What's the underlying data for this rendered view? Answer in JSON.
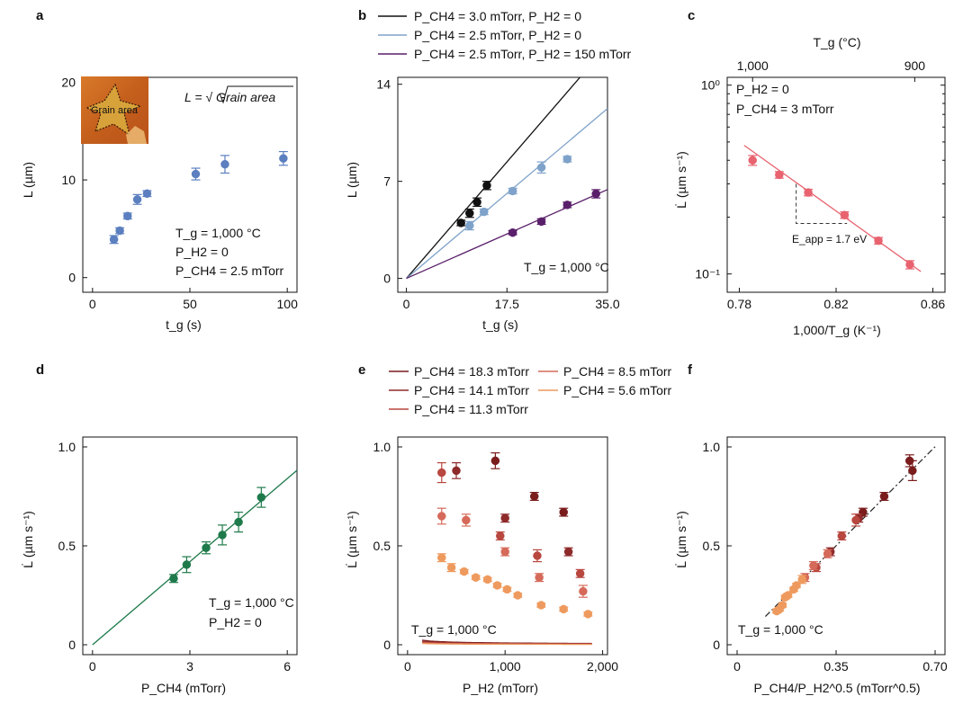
{
  "figure": {
    "colors": {
      "axis": "#111111",
      "blue": "#5b7fbf",
      "black": "#111111",
      "lightblue": "#7ea2c9",
      "purple": "#5a1f6a",
      "pink": "#e8636f",
      "green": "#1e7a4a",
      "e_series": [
        "#7a1c1c",
        "#8e2a2a",
        "#b8473f",
        "#d66a5a",
        "#ee9a5e"
      ]
    },
    "inset": {
      "label": "Grain area",
      "image": "micrograph-of-grain"
    }
  },
  "chart_data": [
    {
      "panel": "a",
      "type": "scatter",
      "xlabel": "t_g (s)",
      "ylabel": "L (µm)",
      "xlim": [
        -5,
        105
      ],
      "ylim": [
        -1.5,
        20.5
      ],
      "xticks": [
        0,
        50,
        100
      ],
      "yticks": [
        0,
        10,
        20
      ],
      "xtick_labels": [
        "0",
        "50",
        "100"
      ],
      "ytick_labels": [
        "0",
        "10",
        "20"
      ],
      "x": [
        11,
        14,
        18,
        23,
        28,
        53,
        68,
        98
      ],
      "y": [
        3.9,
        4.8,
        6.3,
        8.0,
        8.6,
        10.6,
        11.6,
        12.2
      ],
      "yerr": [
        0.4,
        0.3,
        0.3,
        0.5,
        0.3,
        0.6,
        0.9,
        0.7
      ],
      "color_key": "blue",
      "formula": "L = √ Grain area",
      "annotations": [
        "T_g = 1,000 °C",
        "P_H2 = 0",
        "P_CH4 = 2.5 mTorr"
      ]
    },
    {
      "panel": "b",
      "type": "scatter+line",
      "xlabel": "t_g (s)",
      "ylabel": "L (µm)",
      "xlim": [
        -1.5,
        35
      ],
      "ylim": [
        -1,
        14.5
      ],
      "xticks": [
        0,
        17.5,
        35
      ],
      "yticks": [
        0,
        7,
        14
      ],
      "xtick_labels": [
        "0",
        "17.5",
        "35.0"
      ],
      "ytick_labels": [
        "0",
        "7",
        "14"
      ],
      "annotation": "T_g = 1,000 °C",
      "series": [
        {
          "name": "P_CH4 = 3.0 mTorr, P_H2 = 0",
          "color_key": "black",
          "slope": 0.48,
          "x": [
            9.5,
            11.0,
            12.3,
            14.0
          ],
          "y": [
            4.0,
            4.7,
            5.5,
            6.7
          ],
          "yerr": [
            0.2,
            0.3,
            0.3,
            0.3
          ]
        },
        {
          "name": "P_CH4 = 2.5 mTorr, P_H2 = 0",
          "color_key": "lightblue",
          "slope": 0.35,
          "x": [
            11.0,
            13.5,
            18.5,
            23.5,
            28.0
          ],
          "y": [
            3.8,
            4.8,
            6.3,
            8.0,
            8.6
          ],
          "yerr": [
            0.3,
            0.2,
            0.2,
            0.4,
            0.2
          ]
        },
        {
          "name": "P_CH4 = 2.5 mTorr, P_H2 = 150 mTorr",
          "color_key": "purple",
          "slope": 0.183,
          "x": [
            18.5,
            23.5,
            28.0,
            33.0
          ],
          "y": [
            3.3,
            4.1,
            5.3,
            6.1
          ],
          "yerr": [
            0.15,
            0.2,
            0.2,
            0.3
          ]
        }
      ]
    },
    {
      "panel": "c",
      "type": "scatter+line",
      "yscale": "log",
      "xlabel": "1,000/T_g (K⁻¹)",
      "ylabel": "L̇ (µm s⁻¹)",
      "top_xlabel": "T_g (°C)",
      "xlim": [
        0.775,
        0.865
      ],
      "ylim": [
        0.08,
        1.1
      ],
      "xticks": [
        0.78,
        0.82,
        0.86
      ],
      "xtick_labels": [
        "0.78",
        "0.82",
        "0.86"
      ],
      "yticks": [
        0.1,
        1.0
      ],
      "ytick_labels": [
        "10⁻¹",
        "10⁰"
      ],
      "top_ticks": [
        {
          "label": "1,000",
          "inv_t": 0.7855
        },
        {
          "label": "900",
          "inv_t": 0.8525
        }
      ],
      "x": [
        0.7855,
        0.7965,
        0.8085,
        0.8235,
        0.8375,
        0.8505
      ],
      "y": [
        0.4,
        0.335,
        0.27,
        0.205,
        0.15,
        0.112
      ],
      "yerr_frac": [
        0.06,
        0.04,
        0.04,
        0.04,
        0.04,
        0.05
      ],
      "fit": {
        "x": [
          0.782,
          0.855
        ],
        "y": [
          0.48,
          0.103
        ]
      },
      "activation_energy": "E_app = 1.7 eV",
      "color_key": "pink",
      "annotations": [
        "P_H2 = 0",
        "P_CH4 = 3 mTorr"
      ]
    },
    {
      "panel": "d",
      "type": "scatter+line",
      "xlabel": "P_CH4 (mTorr)",
      "ylabel": "L̇ (µm s⁻¹)",
      "xlim": [
        -0.3,
        6.3
      ],
      "ylim": [
        -0.05,
        1.05
      ],
      "xticks": [
        0,
        3,
        6
      ],
      "yticks": [
        0,
        0.5,
        1.0
      ],
      "xtick_labels": [
        "0",
        "3",
        "6"
      ],
      "ytick_labels": [
        "0",
        "0.5",
        "1.0"
      ],
      "x": [
        2.5,
        2.9,
        3.5,
        4.0,
        4.5,
        5.2
      ],
      "y": [
        0.335,
        0.405,
        0.49,
        0.555,
        0.62,
        0.745
      ],
      "yerr": [
        0.02,
        0.04,
        0.03,
        0.05,
        0.05,
        0.05
      ],
      "fit_slope": 0.14,
      "color_key": "green",
      "annotations": [
        "T_g = 1,000 °C",
        "P_H2 = 0"
      ]
    },
    {
      "panel": "e",
      "type": "scatter+line",
      "xlabel": "P_H2 (mTorr)",
      "ylabel": "L̇ (µm s⁻¹)",
      "xlim": [
        -100,
        2050
      ],
      "ylim": [
        -0.05,
        1.05
      ],
      "xticks": [
        0,
        1000,
        2000
      ],
      "yticks": [
        0,
        0.5,
        1.0
      ],
      "xtick_labels": [
        "0",
        "1,000",
        "2,000"
      ],
      "ytick_labels": [
        "0",
        "0.5",
        "1.0"
      ],
      "annotation": "T_g = 1,000 °C",
      "fit_model": "L = A * PCH4 / sqrt(PH2)",
      "series": [
        {
          "name": "P_CH4 = 18.3 mTorr",
          "color_key_index": 0,
          "A": 0.0156,
          "x": [
            900,
            1300,
            1600
          ],
          "y": [
            0.93,
            0.75,
            0.67
          ],
          "yerr": [
            0.04,
            0.02,
            0.02
          ]
        },
        {
          "name": "P_CH4 = 14.1 mTorr",
          "color_key_index": 1,
          "A": 0.0148,
          "x": [
            500,
            1000,
            1650
          ],
          "y": [
            0.88,
            0.64,
            0.47
          ],
          "yerr": [
            0.04,
            0.02,
            0.02
          ]
        },
        {
          "name": "P_CH4 = 11.3 mTorr",
          "color_key_index": 2,
          "A": 0.0145,
          "x": [
            350,
            950,
            1330,
            1770
          ],
          "y": [
            0.87,
            0.55,
            0.45,
            0.36
          ],
          "yerr": [
            0.05,
            0.02,
            0.03,
            0.02
          ]
        },
        {
          "name": "P_CH4 = 8.5 mTorr",
          "color_key_index": 3,
          "A": 0.0138,
          "x": [
            350,
            600,
            1000,
            1350,
            1800
          ],
          "y": [
            0.65,
            0.63,
            0.47,
            0.34,
            0.27
          ],
          "yerr": [
            0.04,
            0.03,
            0.02,
            0.02,
            0.03
          ]
        },
        {
          "name": "P_CH4 = 5.6 mTorr",
          "color_key_index": 4,
          "A": 0.0145,
          "x": [
            350,
            450,
            580,
            700,
            820,
            920,
            1020,
            1130,
            1370,
            1600,
            1850
          ],
          "y": [
            0.44,
            0.39,
            0.37,
            0.34,
            0.33,
            0.3,
            0.28,
            0.25,
            0.2,
            0.18,
            0.155
          ],
          "yerr": [
            0.02,
            0.02,
            0.01,
            0.01,
            0.01,
            0.01,
            0.01,
            0.01,
            0.01,
            0.01,
            0.01
          ]
        }
      ]
    },
    {
      "panel": "f",
      "type": "scatter+line",
      "xlabel": "P_CH4/P_H2^0.5 (mTorr^0.5)",
      "ylabel": "L̇ (µm s⁻¹)",
      "xlim": [
        -0.035,
        0.735
      ],
      "ylim": [
        -0.05,
        1.05
      ],
      "xticks": [
        0,
        0.35,
        0.7
      ],
      "yticks": [
        0,
        0.5,
        1.0
      ],
      "xtick_labels": [
        "0",
        "0.35",
        "0.70"
      ],
      "ytick_labels": [
        "0",
        "0.5",
        "1.0"
      ],
      "annotation": "T_g = 1,000 °C",
      "fit_slope": 1.43,
      "fit_range": [
        0.1,
        0.7
      ],
      "x": [
        0.61,
        0.62,
        0.52,
        0.445,
        0.43,
        0.42,
        0.37,
        0.33,
        0.32,
        0.28,
        0.27,
        0.24,
        0.23,
        0.21,
        0.2,
        0.18,
        0.17,
        0.16,
        0.15,
        0.14
      ],
      "y": [
        0.93,
        0.88,
        0.75,
        0.67,
        0.64,
        0.63,
        0.55,
        0.47,
        0.46,
        0.39,
        0.4,
        0.34,
        0.33,
        0.3,
        0.28,
        0.25,
        0.24,
        0.2,
        0.18,
        0.17
      ],
      "yerr": [
        0.03,
        0.05,
        0.02,
        0.02,
        0.02,
        0.03,
        0.02,
        0.02,
        0.02,
        0.02,
        0.02,
        0.02,
        0.02,
        0.01,
        0.01,
        0.01,
        0.01,
        0.01,
        0.01,
        0.01
      ],
      "color_index": [
        0,
        0,
        0,
        0,
        1,
        2,
        2,
        1,
        3,
        2,
        3,
        3,
        4,
        4,
        4,
        4,
        4,
        4,
        4,
        4
      ]
    }
  ]
}
